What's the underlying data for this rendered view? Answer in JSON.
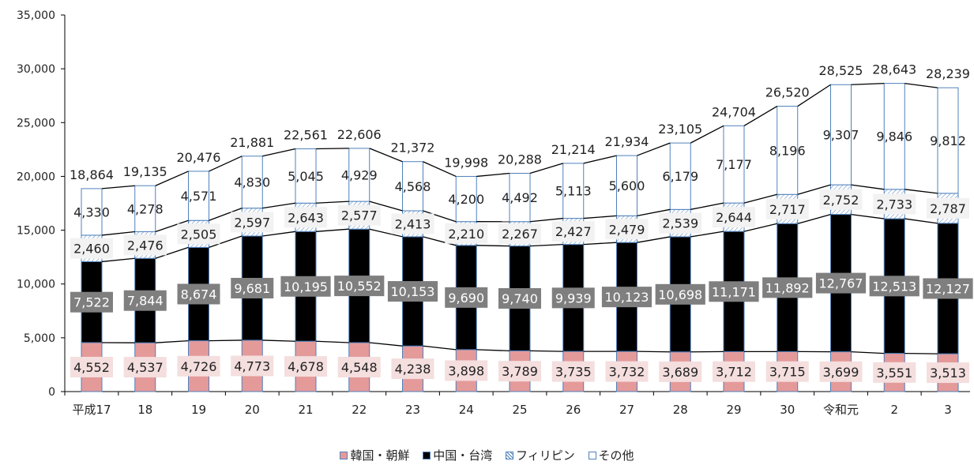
{
  "chart_data": {
    "type": "bar",
    "stacked": true,
    "title": "",
    "xlabel": "",
    "ylabel": "",
    "ylim": [
      0,
      35000
    ],
    "yticks": [
      0,
      5000,
      10000,
      15000,
      20000,
      25000,
      30000,
      35000
    ],
    "ytick_labels": [
      "0",
      "5,000",
      "10,000",
      "15,000",
      "20,000",
      "25,000",
      "30,000",
      "35,000"
    ],
    "categories": [
      "平成17",
      "18",
      "19",
      "20",
      "21",
      "22",
      "23",
      "24",
      "25",
      "26",
      "27",
      "28",
      "29",
      "30",
      "令和元",
      "2",
      "3"
    ],
    "series": [
      {
        "name": "韓国・朝鮮",
        "values": [
          4552,
          4537,
          4726,
          4773,
          4678,
          4548,
          4238,
          3898,
          3789,
          3735,
          3732,
          3689,
          3712,
          3715,
          3699,
          3551,
          3513
        ],
        "labels": [
          "4,552",
          "4,537",
          "4,726",
          "4,773",
          "4,678",
          "4,548",
          "4,238",
          "3,898",
          "3,789",
          "3,735",
          "3,732",
          "3,689",
          "3,712",
          "3,715",
          "3,699",
          "3,551",
          "3,513"
        ]
      },
      {
        "name": "中国・台湾",
        "values": [
          7522,
          7844,
          8674,
          9681,
          10195,
          10552,
          10153,
          9690,
          9740,
          9939,
          10123,
          10698,
          11171,
          11892,
          12767,
          12513,
          12127
        ],
        "labels": [
          "7,522",
          "7,844",
          "8,674",
          "9,681",
          "10,195",
          "10,552",
          "10,153",
          "9,690",
          "9,740",
          "9,939",
          "10,123",
          "10,698",
          "11,171",
          "11,892",
          "12,767",
          "12,513",
          "12,127"
        ]
      },
      {
        "name": "フィリピン",
        "values": [
          2460,
          2476,
          2505,
          2597,
          2643,
          2577,
          2413,
          2210,
          2267,
          2427,
          2479,
          2539,
          2644,
          2717,
          2752,
          2733,
          2787
        ],
        "labels": [
          "2,460",
          "2,476",
          "2,505",
          "2,597",
          "2,643",
          "2,577",
          "2,413",
          "2,210",
          "2,267",
          "2,427",
          "2,479",
          "2,539",
          "2,644",
          "2,717",
          "2,752",
          "2,733",
          "2,787"
        ]
      },
      {
        "name": "その他",
        "values": [
          4330,
          4278,
          4571,
          4830,
          5045,
          4929,
          4568,
          4200,
          4492,
          5113,
          5600,
          6179,
          7177,
          8196,
          9307,
          9846,
          9812
        ],
        "labels": [
          "4,330",
          "4,278",
          "4,571",
          "4,830",
          "5,045",
          "4,929",
          "4,568",
          "4,200",
          "4,492",
          "5,113",
          "5,600",
          "6,179",
          "7,177",
          "8,196",
          "9,307",
          "9,846",
          "9,812"
        ]
      }
    ],
    "totals": [
      18864,
      19135,
      20476,
      21881,
      22561,
      22606,
      21372,
      19998,
      20288,
      21214,
      21934,
      23105,
      24704,
      26520,
      28525,
      28643,
      28239
    ],
    "total_labels": [
      "18,864",
      "19,135",
      "20,476",
      "21,881",
      "22,561",
      "22,606",
      "21,372",
      "19,998",
      "20,288",
      "21,214",
      "21,934",
      "23,105",
      "24,704",
      "26,520",
      "28,525",
      "28,643",
      "28,239"
    ],
    "legend_position": "bottom",
    "grid": false,
    "colors": {
      "korea_fill": "#e59a9a",
      "korea_label_bg": "#f4dede",
      "china_fill": "#000000",
      "china_label_bg": "#7f7f7f",
      "philippines_fill": "#ffffff",
      "philippines_label_bg": "#f2f2f2",
      "other_fill": "#ffffff",
      "bar_border": "#4f81bd",
      "connector": "#000000"
    }
  }
}
